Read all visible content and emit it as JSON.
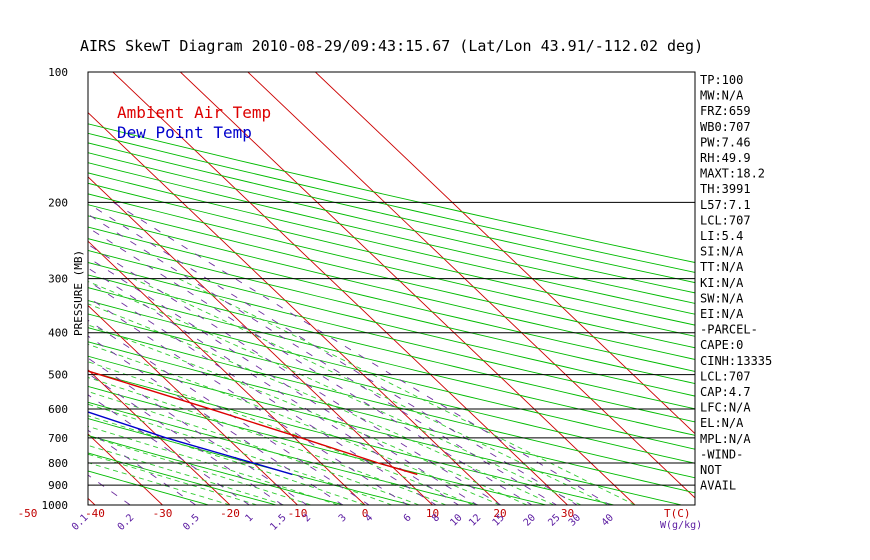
{
  "chart_data": {
    "type": "line",
    "title": "AIRS SkewT Diagram 2010-08-29/09:43:15.67 (Lat/Lon 43.91/-112.02 deg)",
    "ylabel": "PRESSURE (MB)",
    "xlabel": "T(C)",
    "mixing_ratio_label": "W(g/kg)",
    "y_scale": "log",
    "ylim": [
      1000,
      100
    ],
    "pressure_ticks": [
      "100",
      "200",
      "300",
      "400",
      "500",
      "600",
      "700",
      "800",
      "900",
      "1000"
    ],
    "top_temp_ticks": [
      "-120",
      "-110",
      "-100",
      "-90",
      "-80",
      "-70",
      "-60",
      "-50",
      "-40"
    ],
    "bottom_temp_ticks": [
      "-50",
      "-40",
      "-30",
      "-20",
      "-10",
      "0",
      "10",
      "20",
      "30"
    ],
    "mixing_ratio_ticks": [
      "0.1",
      "0.2",
      "0.5",
      "1",
      "1.5",
      "2",
      "3",
      "4",
      "6",
      "8",
      "10",
      "12",
      "15",
      "20",
      "25",
      "30",
      "40"
    ],
    "legend": [
      "Ambient Air Temp",
      "Dew Point Temp"
    ],
    "colors": {
      "air": "#dd0000",
      "dew": "#0000cc",
      "dry_adiabat": "#00bb00",
      "isotherm": "#cc0000",
      "mixing": "#7030a0",
      "moist": "#33cc33"
    },
    "series": [
      {
        "name": "Ambient Air Temp",
        "pressure": [
          850,
          800,
          700,
          600,
          500,
          400,
          350,
          300,
          250,
          200,
          150,
          100
        ],
        "temperature": [
          12.5,
          8.5,
          1.0,
          -8.0,
          -19.0,
          -32.5,
          -40.5,
          -49.0,
          -56.0,
          -62.5,
          -65.0,
          -65.0
        ]
      },
      {
        "name": "Dew Point Temp",
        "pressure": [
          850,
          800,
          700,
          600,
          500,
          400,
          350,
          300,
          250,
          200,
          150,
          100
        ],
        "temperature": [
          -6.0,
          -10.0,
          -19.0,
          -27.5,
          -35.5,
          -44.5,
          -53.5,
          -64.0,
          -80.0,
          -92.0,
          -95.0,
          -96.0
        ]
      }
    ]
  },
  "stats": [
    "TP:100",
    "MW:N/A",
    "FRZ:659",
    "WB0:707",
    "PW:7.46",
    "RH:49.9",
    "MAXT:18.2",
    "TH:3991",
    "L57:7.1",
    "LCL:707",
    "LI:5.4",
    "SI:N/A",
    "TT:N/A",
    "KI:N/A",
    "SW:N/A",
    "EI:N/A",
    "-PARCEL-",
    "CAPE:0",
    "CINH:13335",
    "LCL:707",
    "CAP:4.7",
    "LFC:N/A",
    "EL:N/A",
    "MPL:N/A",
    "-WIND-",
    "NOT",
    "AVAIL"
  ]
}
